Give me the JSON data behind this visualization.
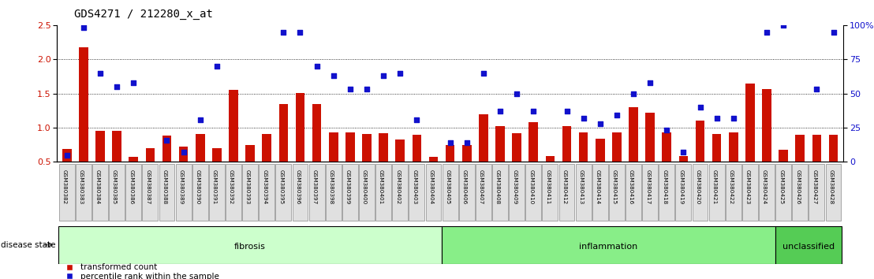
{
  "title": "GDS4271 / 212280_x_at",
  "samples": [
    "GSM380382",
    "GSM380383",
    "GSM380384",
    "GSM380385",
    "GSM380386",
    "GSM380387",
    "GSM380388",
    "GSM380389",
    "GSM380390",
    "GSM380391",
    "GSM380392",
    "GSM380393",
    "GSM380394",
    "GSM380395",
    "GSM380396",
    "GSM380397",
    "GSM380398",
    "GSM380399",
    "GSM380400",
    "GSM380401",
    "GSM380402",
    "GSM380403",
    "GSM380404",
    "GSM380405",
    "GSM380406",
    "GSM380407",
    "GSM380408",
    "GSM380409",
    "GSM380410",
    "GSM380411",
    "GSM380412",
    "GSM380413",
    "GSM380414",
    "GSM380415",
    "GSM380416",
    "GSM380417",
    "GSM380418",
    "GSM380419",
    "GSM380420",
    "GSM380421",
    "GSM380422",
    "GSM380423",
    "GSM380424",
    "GSM380425",
    "GSM380426",
    "GSM380427",
    "GSM380428"
  ],
  "bar_values": [
    0.69,
    2.17,
    0.95,
    0.95,
    0.57,
    0.7,
    0.88,
    0.72,
    0.91,
    0.7,
    1.55,
    0.75,
    0.91,
    1.35,
    1.51,
    1.34,
    0.93,
    0.93,
    0.91,
    0.92,
    0.83,
    0.9,
    0.57,
    0.75,
    0.75,
    1.2,
    1.02,
    0.92,
    1.08,
    0.59,
    1.02,
    0.93,
    0.84,
    0.93,
    1.3,
    1.22,
    0.93,
    0.58,
    1.1,
    0.91,
    0.93,
    1.65,
    1.56,
    0.68,
    0.9,
    0.9,
    0.9
  ],
  "dot_values_pct": [
    5,
    98,
    65,
    55,
    58,
    null,
    16,
    7,
    31,
    70,
    null,
    null,
    null,
    95,
    95,
    70,
    63,
    53,
    53,
    63,
    65,
    31,
    null,
    14,
    14,
    65,
    37,
    50,
    37,
    null,
    37,
    32,
    28,
    34,
    50,
    58,
    23,
    7,
    40,
    32,
    32,
    null,
    95,
    100,
    null,
    53,
    95
  ],
  "groups": [
    {
      "label": "fibrosis",
      "start": 0,
      "end": 23,
      "color": "#ccffcc"
    },
    {
      "label": "inflammation",
      "start": 23,
      "end": 43,
      "color": "#77dd77"
    },
    {
      "label": "unclassified",
      "start": 43,
      "end": 47,
      "color": "#44cc44"
    }
  ],
  "bar_color": "#cc1100",
  "dot_color": "#1111cc",
  "bar_bottom": 0.5,
  "ylim_left": [
    0.5,
    2.5
  ],
  "ylim_right": [
    0,
    100
  ],
  "yticks_left": [
    0.5,
    1.0,
    1.5,
    2.0,
    2.5
  ],
  "yticks_right": [
    0,
    25,
    50,
    75,
    100
  ],
  "grid_values": [
    1.0,
    1.5,
    2.0
  ],
  "disease_state_label": "disease state",
  "legend_bar": "transformed count",
  "legend_dot": "percentile rank within the sample",
  "bg_color": "#ffffff"
}
